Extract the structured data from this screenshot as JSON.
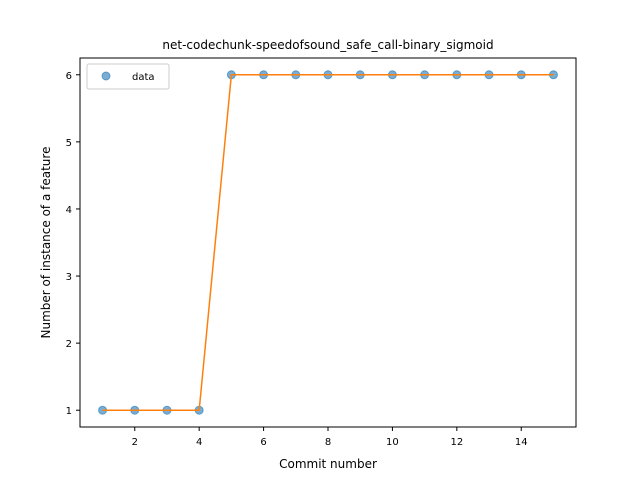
{
  "chart_data": {
    "type": "line",
    "title": "net-codechunk-speedofsound_safe_call-binary_sigmoid",
    "xlabel": "Commit number",
    "ylabel": "Number of instance of a feature",
    "xlim": [
      0.3,
      15.7
    ],
    "ylim": [
      0.75,
      6.25
    ],
    "xticks": [
      2,
      4,
      6,
      8,
      10,
      12,
      14
    ],
    "yticks": [
      1,
      2,
      3,
      4,
      5,
      6
    ],
    "grid": false,
    "legend_position": "upper-left",
    "series": [
      {
        "name": "data",
        "kind": "scatter",
        "color": "#1f77b4",
        "x": [
          1,
          2,
          3,
          4,
          5,
          6,
          7,
          8,
          9,
          10,
          11,
          12,
          13,
          14,
          15
        ],
        "y": [
          1,
          1,
          1,
          1,
          6,
          6,
          6,
          6,
          6,
          6,
          6,
          6,
          6,
          6,
          6
        ]
      },
      {
        "kind": "line",
        "color": "#ff7f0e",
        "x": [
          1,
          2,
          3,
          4,
          5,
          6,
          7,
          8,
          9,
          10,
          11,
          12,
          13,
          14,
          15
        ],
        "y": [
          1,
          1,
          1,
          1,
          6,
          6,
          6,
          6,
          6,
          6,
          6,
          6,
          6,
          6,
          6
        ]
      }
    ]
  }
}
